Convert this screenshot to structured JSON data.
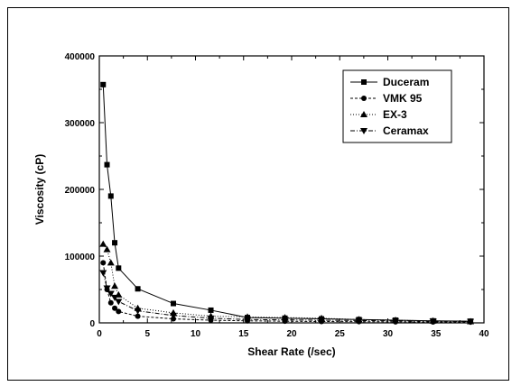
{
  "chart_data": {
    "type": "line",
    "title": "",
    "xlabel": "Shear Rate (/sec)",
    "ylabel": "Viscosity (cP)",
    "xlim": [
      0,
      40
    ],
    "ylim": [
      0,
      400000
    ],
    "x_ticks": [
      "0",
      "5",
      "10",
      "15",
      "20",
      "25",
      "30",
      "35",
      "40"
    ],
    "y_ticks": [
      "0",
      "100000",
      "200000",
      "300000",
      "400000"
    ],
    "grid": false,
    "legend_position": "top-right",
    "series": [
      {
        "name": "Duceram",
        "marker": "square",
        "line_style": "solid",
        "x": [
          0.4,
          0.8,
          1.2,
          1.6,
          2.0,
          4.0,
          7.7,
          11.6,
          15.4,
          19.3,
          23.1,
          27.0,
          30.8,
          34.7,
          38.6
        ],
        "y": [
          357000,
          237000,
          190000,
          120000,
          82000,
          51000,
          29000,
          19000,
          8000,
          7000,
          6000,
          5000,
          4000,
          3000,
          2500
        ]
      },
      {
        "name": "VMK 95",
        "marker": "circle",
        "line_style": "dashed",
        "x": [
          0.4,
          0.8,
          1.2,
          1.6,
          2.0,
          4.0,
          7.7,
          11.6,
          15.4,
          19.3,
          23.1,
          27.0,
          30.8,
          34.7,
          38.6
        ],
        "y": [
          90000,
          50000,
          30000,
          22000,
          17000,
          10000,
          6000,
          4000,
          3000,
          2500,
          2000,
          1800,
          1500,
          1300,
          1200
        ]
      },
      {
        "name": "EX-3",
        "marker": "triangle-up",
        "line_style": "dotted",
        "x": [
          0.4,
          0.8,
          1.2,
          1.6,
          2.0,
          4.0,
          7.7,
          11.6,
          15.4,
          19.3,
          23.1,
          27.0,
          30.8,
          34.7,
          38.6
        ],
        "y": [
          118000,
          110000,
          90000,
          55000,
          42000,
          22000,
          15000,
          10000,
          9000,
          8000,
          7000,
          5000,
          4000,
          3000,
          2000
        ]
      },
      {
        "name": "Ceramax",
        "marker": "triangle-down",
        "line_style": "dash-dot",
        "x": [
          0.4,
          0.8,
          1.2,
          1.6,
          2.0,
          4.0,
          7.7,
          11.6,
          15.4,
          19.3,
          23.1,
          27.0,
          30.8,
          34.7,
          38.6
        ],
        "y": [
          75000,
          52000,
          44000,
          38000,
          32000,
          18000,
          11000,
          7000,
          5000,
          4500,
          4000,
          3500,
          3000,
          2500,
          2000
        ]
      }
    ]
  }
}
